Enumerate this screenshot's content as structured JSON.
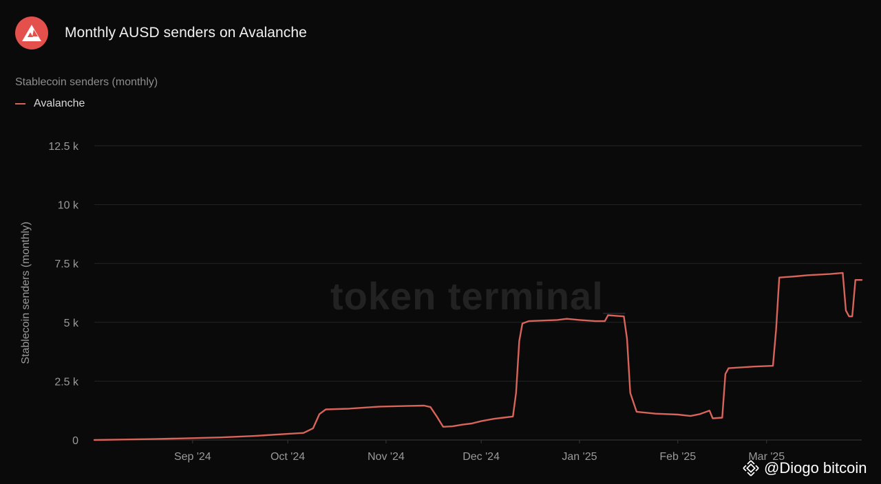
{
  "header": {
    "title": "Monthly AUSD senders on Avalanche",
    "logo_icon": "avalanche-logo-icon"
  },
  "watermark": "token terminal_",
  "credit": {
    "text": "@Diogo bitcoin",
    "icon": "binance-diamond-icon"
  },
  "colors": {
    "background": "#0b0a0b",
    "series": "#d9645a",
    "logo": "#e4514c",
    "grid": "#262526",
    "axis_text": "#9a9a9a"
  },
  "chart_data": {
    "type": "line",
    "subtitle": "Stablecoin senders (monthly)",
    "ylabel": "Stablecoin senders (monthly)",
    "xlabel": "",
    "ylim": [
      0,
      12500
    ],
    "xlim": [
      "2024-08-01",
      "2025-03-31"
    ],
    "y_ticks": [
      0,
      2500,
      5000,
      7500,
      10000,
      12500
    ],
    "y_tick_labels": [
      "0",
      "2.5 k",
      "5 k",
      "7.5 k",
      "10 k",
      "12.5 k"
    ],
    "x_ticks": [
      "2024-09-01",
      "2024-10-01",
      "2024-11-01",
      "2024-12-01",
      "2025-01-01",
      "2025-02-01",
      "2025-03-01"
    ],
    "x_tick_labels": [
      "Sep '24",
      "Oct '24",
      "Nov '24",
      "Dec '24",
      "Jan '25",
      "Feb '25",
      "Mar '25"
    ],
    "grid": true,
    "legend_position": "top-left",
    "series": [
      {
        "name": "Avalanche",
        "color": "#d9645a",
        "points": [
          [
            "2024-08-01",
            0
          ],
          [
            "2024-08-10",
            20
          ],
          [
            "2024-08-20",
            40
          ],
          [
            "2024-09-01",
            80
          ],
          [
            "2024-09-10",
            110
          ],
          [
            "2024-09-20",
            170
          ],
          [
            "2024-10-01",
            260
          ],
          [
            "2024-10-06",
            300
          ],
          [
            "2024-10-09",
            500
          ],
          [
            "2024-10-11",
            1100
          ],
          [
            "2024-10-13",
            1300
          ],
          [
            "2024-10-20",
            1330
          ],
          [
            "2024-10-30",
            1420
          ],
          [
            "2024-11-08",
            1450
          ],
          [
            "2024-11-13",
            1460
          ],
          [
            "2024-11-15",
            1400
          ],
          [
            "2024-11-17",
            1000
          ],
          [
            "2024-11-19",
            560
          ],
          [
            "2024-11-22",
            580
          ],
          [
            "2024-11-25",
            650
          ],
          [
            "2024-11-28",
            700
          ],
          [
            "2024-12-01",
            800
          ],
          [
            "2024-12-05",
            900
          ],
          [
            "2024-12-08",
            950
          ],
          [
            "2024-12-11",
            1000
          ],
          [
            "2024-12-12",
            2000
          ],
          [
            "2024-12-13",
            4200
          ],
          [
            "2024-12-14",
            4950
          ],
          [
            "2024-12-16",
            5050
          ],
          [
            "2024-12-25",
            5100
          ],
          [
            "2024-12-28",
            5150
          ],
          [
            "2025-01-01",
            5100
          ],
          [
            "2025-01-06",
            5050
          ],
          [
            "2025-01-09",
            5050
          ],
          [
            "2025-01-10",
            5300
          ],
          [
            "2025-01-13",
            5270
          ],
          [
            "2025-01-15",
            5250
          ],
          [
            "2025-01-16",
            4300
          ],
          [
            "2025-01-17",
            2000
          ],
          [
            "2025-01-19",
            1200
          ],
          [
            "2025-01-25",
            1120
          ],
          [
            "2025-02-01",
            1080
          ],
          [
            "2025-02-05",
            1020
          ],
          [
            "2025-02-08",
            1100
          ],
          [
            "2025-02-11",
            1250
          ],
          [
            "2025-02-12",
            920
          ],
          [
            "2025-02-15",
            950
          ],
          [
            "2025-02-16",
            2800
          ],
          [
            "2025-02-17",
            3050
          ],
          [
            "2025-02-25",
            3120
          ],
          [
            "2025-03-03",
            3150
          ],
          [
            "2025-03-04",
            4700
          ],
          [
            "2025-03-05",
            6900
          ],
          [
            "2025-03-10",
            6950
          ],
          [
            "2025-03-14",
            7000
          ],
          [
            "2025-03-21",
            7050
          ],
          [
            "2025-03-25",
            7100
          ],
          [
            "2025-03-26",
            5500
          ],
          [
            "2025-03-27",
            5250
          ],
          [
            "2025-03-28",
            5250
          ],
          [
            "2025-03-29",
            6800
          ],
          [
            "2025-03-31",
            6800
          ]
        ]
      }
    ]
  }
}
